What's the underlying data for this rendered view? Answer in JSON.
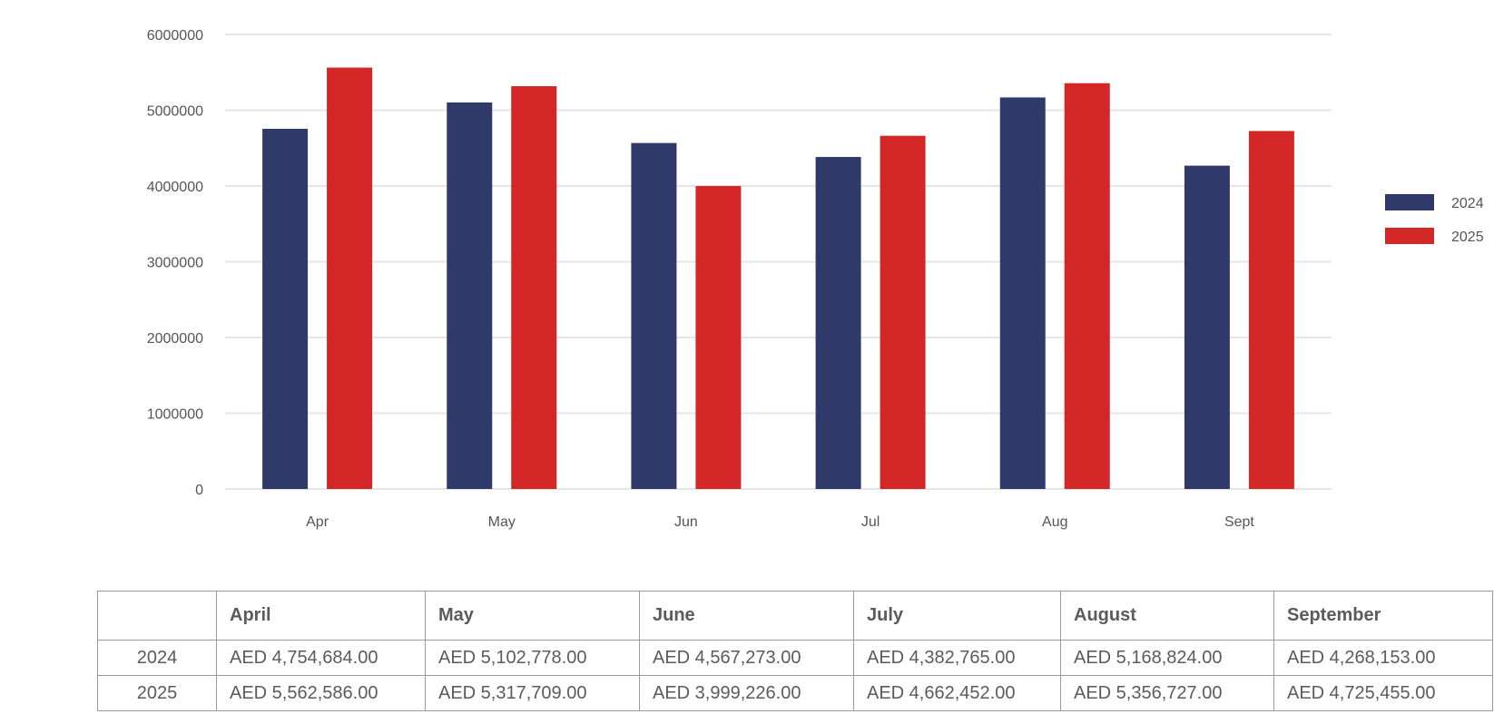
{
  "chart_data": {
    "type": "bar",
    "categories": [
      "Apr",
      "May",
      "Jun",
      "Jul",
      "Aug",
      "Sept"
    ],
    "series": [
      {
        "name": "2024",
        "color": "#2f3a6b",
        "values": [
          4754684,
          5102778,
          4567273,
          4382765,
          5168824,
          4268153
        ]
      },
      {
        "name": "2025",
        "color": "#d32626",
        "values": [
          5562586,
          5317709,
          3999226,
          4662452,
          5356727,
          4725455
        ]
      }
    ],
    "yticks": [
      "0",
      "1000000",
      "2000000",
      "3000000",
      "4000000",
      "5000000",
      "6000000"
    ],
    "ylim": [
      0,
      6000000
    ],
    "grid": true,
    "legend_position": "right"
  },
  "table": {
    "headers": [
      "",
      "April",
      "May",
      "June",
      "July",
      "August",
      "September"
    ],
    "rows": [
      {
        "label": "2024",
        "cells": [
          "AED 4,754,684.00",
          "AED 5,102,778.00",
          "AED 4,567,273.00",
          "AED 4,382,765.00",
          "AED 5,168,824.00",
          "AED 4,268,153.00"
        ]
      },
      {
        "label": "2025",
        "cells": [
          "AED 5,562,586.00",
          "AED 5,317,709.00",
          "AED 3,999,226.00",
          "AED 4,662,452.00",
          "AED 5,356,727.00",
          "AED 4,725,455.00"
        ]
      }
    ]
  }
}
